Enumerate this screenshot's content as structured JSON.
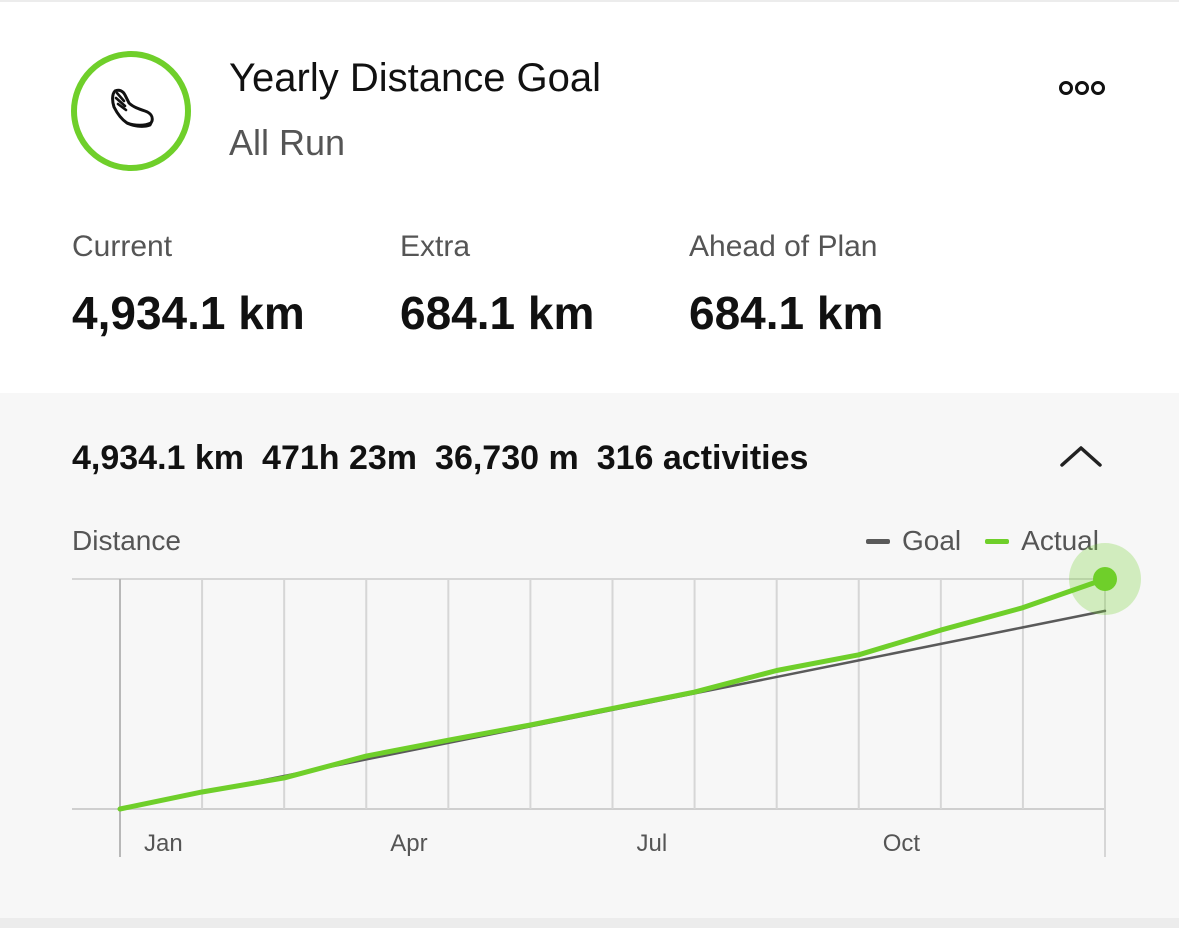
{
  "header": {
    "title": "Yearly Distance Goal",
    "subtitle": "All Run",
    "icon": "running-shoe-icon",
    "accent_color": "#6fcf2a"
  },
  "stats": [
    {
      "label": "Current",
      "value": "4,934.1 km"
    },
    {
      "label": "Extra",
      "value": "684.1 km"
    },
    {
      "label": "Ahead of Plan",
      "value": "684.1 km"
    }
  ],
  "summary": {
    "distance": "4,934.1 km",
    "time": "471h 23m",
    "elevation": "36,730 m",
    "activities": "316 activities"
  },
  "chart_data": {
    "type": "line",
    "title": "",
    "ylabel": "Distance",
    "xlabel": "",
    "tick_labels": [
      "Jan",
      "Apr",
      "Jul",
      "Oct"
    ],
    "x": [
      0,
      1,
      2,
      3,
      4,
      5,
      6,
      7,
      8,
      9,
      10,
      11,
      12
    ],
    "ylim": [
      0,
      4934.1
    ],
    "grid": true,
    "legend_position": "top-right",
    "series": [
      {
        "name": "Goal",
        "color": "#5a5a5a",
        "values": [
          0,
          354,
          708,
          1063,
          1417,
          1771,
          2125,
          2479,
          2833,
          3188,
          3542,
          3896,
          4250
        ]
      },
      {
        "name": "Actual",
        "color": "#6fcf2a",
        "values": [
          0,
          365,
          666,
          1136,
          1477,
          1803,
          2158,
          2509,
          2971,
          3308,
          3838,
          4319,
          4934.1
        ]
      }
    ]
  }
}
